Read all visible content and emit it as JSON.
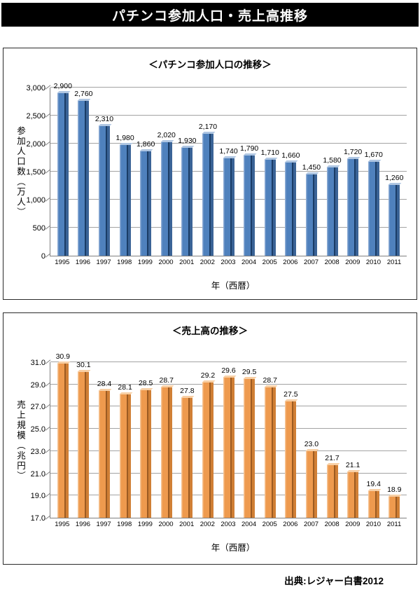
{
  "page": {
    "title": "パチンコ参加人口・売上高推移",
    "source": "出典:レジャー白書2012"
  },
  "chart_data": [
    {
      "type": "bar",
      "title": "＜パチンコ参加人口の推移＞",
      "xlabel": "年（西暦）",
      "ylabel": "参加人口数（万人）",
      "categories": [
        "1995",
        "1996",
        "1997",
        "1998",
        "1999",
        "2000",
        "2001",
        "2002",
        "2003",
        "2004",
        "2005",
        "2006",
        "2007",
        "2008",
        "2009",
        "2010",
        "2011"
      ],
      "values": [
        2900,
        2760,
        2310,
        1980,
        1860,
        2020,
        1930,
        2170,
        1740,
        1790,
        1710,
        1660,
        1450,
        1580,
        1720,
        1670,
        1260
      ],
      "value_labels": [
        "2,900",
        "2,760",
        "2,310",
        "1,980",
        "1,860",
        "2,020",
        "1,930",
        "2,170",
        "1,740",
        "1,790",
        "1,710",
        "1,660",
        "1,450",
        "1,580",
        "1,720",
        "1,670",
        "1,260"
      ],
      "ylim": [
        0,
        3000
      ],
      "ytick_labels": [
        "0",
        "500",
        "1,000",
        "1,500",
        "2,000",
        "2,500",
        "3,000"
      ],
      "grid": true,
      "legend": "none",
      "bar_colors": {
        "main": "#4F81BD",
        "light": "#8DACD5",
        "dark": "#1A3C66",
        "side": "#3A6396",
        "top": "#AFC6E2"
      }
    },
    {
      "type": "bar",
      "title": "＜売上高の推移＞",
      "xlabel": "年（西暦）",
      "ylabel": "売上規模（兆円）",
      "categories": [
        "1995",
        "1996",
        "1997",
        "1998",
        "1999",
        "2000",
        "2001",
        "2002",
        "2003",
        "2004",
        "2005",
        "2006",
        "2007",
        "2008",
        "2009",
        "2010",
        "2011"
      ],
      "values": [
        30.9,
        30.1,
        28.4,
        28.1,
        28.5,
        28.7,
        27.8,
        29.2,
        29.6,
        29.5,
        28.7,
        27.5,
        23.0,
        21.7,
        21.1,
        19.4,
        18.9
      ],
      "value_labels": [
        "30.9",
        "30.1",
        "28.4",
        "28.1",
        "28.5",
        "28.7",
        "27.8",
        "29.2",
        "29.6",
        "29.5",
        "28.7",
        "27.5",
        "23.0",
        "21.7",
        "21.1",
        "19.4",
        "18.9"
      ],
      "ylim": [
        17,
        31
      ],
      "ytick_labels": [
        "17.0",
        "19.0",
        "21.0",
        "23.0",
        "25.0",
        "27.0",
        "29.0",
        "31.0"
      ],
      "grid": true,
      "legend": "none",
      "bar_colors": {
        "main": "#EE9A4E",
        "light": "#F6C494",
        "dark": "#9C5B22",
        "side": "#D07F35",
        "top": "#F8CFA4"
      }
    }
  ]
}
